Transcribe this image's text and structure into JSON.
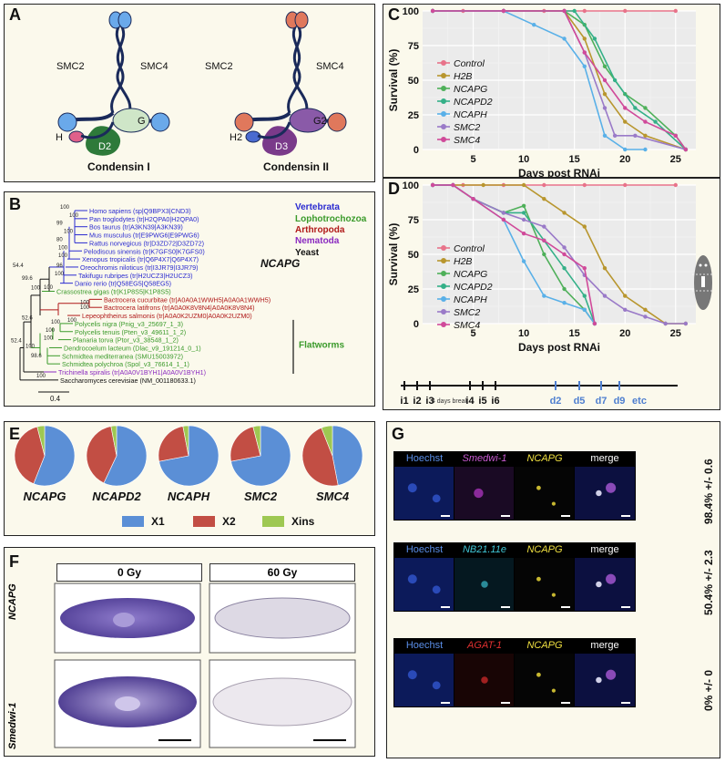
{
  "panel_labels": {
    "a": "A",
    "b": "B",
    "c": "C",
    "d": "D",
    "e": "E",
    "f": "F",
    "g": "G"
  },
  "panel_a": {
    "condensin1": {
      "smc_left": "SMC2",
      "smc_right": "SMC4",
      "h": "H",
      "g": "G",
      "d": "D2",
      "title": "Condensin I",
      "head_color": "#6aa9ea",
      "color_h": "#e0608a",
      "color_g": "#cfe6c8",
      "color_d": "#2e7a3a"
    },
    "condensin2": {
      "smc_left": "SMC2",
      "smc_right": "SMC4",
      "h": "H2",
      "g": "G2",
      "d": "D3",
      "title": "Condensin II",
      "head_color": "#e0785c",
      "color_h": "#4a6bd0",
      "color_g": "#8a5aa8",
      "color_d": "#7a3a8a"
    },
    "coil_color": "#1a2a5a"
  },
  "panel_b": {
    "taxa": [
      {
        "label": "Homo sapiens (sp|Q9BPX3|CND3)",
        "color": "#2a2ad0"
      },
      {
        "label": "Pan troglodytes (tr|H2QPA0|H2QPA0)",
        "color": "#2a2ad0"
      },
      {
        "label": "Bos taurus (tr|A3KN39|A3KN39)",
        "color": "#2a2ad0"
      },
      {
        "label": "Mus musculus (tr|E9PWG6|E9PWG6)",
        "color": "#2a2ad0"
      },
      {
        "label": "Rattus norvegicus (tr|D3ZD72|D3ZD72)",
        "color": "#2a2ad0"
      },
      {
        "label": "Pelodiscus sinensis (tr|K7GFS0|K7GFS0)",
        "color": "#2a2ad0"
      },
      {
        "label": "Xenopus tropicalis (tr|Q6P4X7|Q6P4X7)",
        "color": "#2a2ad0"
      },
      {
        "label": "Oreochromis niloticus (tr|I3JR79|I3JR79)",
        "color": "#2a2ad0"
      },
      {
        "label": "Takifugu rubripes (tr|H2UCZ3|H2UCZ3)",
        "color": "#2a2ad0"
      },
      {
        "label": "Danio rerio (tr|Q58EG5|Q58EG5)",
        "color": "#2a2ad0"
      },
      {
        "label": "Crassostrea gigas (tr|K1P8S5|K1P8S5)",
        "color": "#3a9a2a"
      },
      {
        "label": "Bactrocera cucurbitae (tr|A0A0A1WWH5|A0A0A1WWH5)",
        "color": "#b01818"
      },
      {
        "label": "Bactrocera latifrons (tr|A0A0K8V8N4|A0A0K8V8N4)",
        "color": "#b01818"
      },
      {
        "label": "Lepeophtheirus salmonis (tr|A0A0K2UZM0|A0A0K2UZM0)",
        "color": "#b01818"
      },
      {
        "label": "Polycelis nigra (Pnig_v3_25697_1_3)",
        "color": "#3a9a2a"
      },
      {
        "label": "Polycelis tenuis (Pten_v3_49611_1_2)",
        "color": "#3a9a2a"
      },
      {
        "label": "Planaria torva (Ptor_v3_38548_1_2)",
        "color": "#3a9a2a"
      },
      {
        "label": "Dendrocoelum lacteum (Dlac_v9_191214_0_1)",
        "color": "#3a9a2a"
      },
      {
        "label": "Schmidtea mediterranea (SMU15003972)",
        "color": "#3a9a2a"
      },
      {
        "label": "Schmidtea polychroa (Spol_v3_76614_1_1)",
        "color": "#3a9a2a"
      },
      {
        "label": "Trichinella spiralis (tr|A0A0V1BYH1|A0A0V1BYH1)",
        "color": "#8a2ac0"
      },
      {
        "label": "Saccharomyces cerevisiae (NM_001180633.1)",
        "color": "#111111"
      }
    ],
    "groups": [
      {
        "label": "Vertebrata",
        "color": "#2a2ad0"
      },
      {
        "label": "Lophotrochozoa",
        "color": "#3a9a2a"
      },
      {
        "label": "Arthropoda",
        "color": "#b01818"
      },
      {
        "label": "Nematoda",
        "color": "#8a2ac0"
      },
      {
        "label": "Yeast",
        "color": "#111111"
      }
    ],
    "gene": "NCAPG",
    "flatworms": "Flatworms",
    "supports": [
      "100",
      "100",
      "99",
      "100",
      "80",
      "100",
      "100",
      "96",
      "100",
      "100",
      "99.6",
      "100",
      "54.4",
      "52.6",
      "100",
      "100",
      "100",
      "100",
      "100",
      "100",
      "52.4",
      "100",
      "98.6",
      "100"
    ],
    "scale": "0.4"
  },
  "panel_c": {
    "chart_data": {
      "type": "line",
      "xlabel": "Days post RNAi",
      "ylabel": "Survival (%)",
      "xlim": [
        0,
        27
      ],
      "ylim": [
        0,
        100
      ],
      "xticks": [
        "5",
        "10",
        "15",
        "20",
        "25"
      ],
      "yticks": [
        "0",
        "25",
        "50",
        "75",
        "100"
      ],
      "series": [
        {
          "name": "Control",
          "color": "#e8738a",
          "x": [
            1,
            4,
            8,
            12,
            16,
            20,
            25
          ],
          "values": [
            100,
            100,
            100,
            100,
            100,
            100,
            100
          ]
        },
        {
          "name": "H2B",
          "color": "#b8962e",
          "x": [
            1,
            8,
            14,
            16,
            18,
            20,
            22,
            26
          ],
          "values": [
            100,
            100,
            100,
            80,
            40,
            20,
            10,
            0
          ]
        },
        {
          "name": "NCAPG",
          "color": "#4fb05a",
          "x": [
            1,
            8,
            14,
            16,
            18,
            20,
            22,
            25,
            26
          ],
          "values": [
            100,
            100,
            100,
            90,
            60,
            40,
            30,
            10,
            0
          ]
        },
        {
          "name": "NCAPD2",
          "color": "#34b088",
          "x": [
            1,
            8,
            15,
            17,
            19,
            21,
            23,
            26
          ],
          "values": [
            100,
            100,
            100,
            80,
            50,
            30,
            20,
            0
          ]
        },
        {
          "name": "NCAPH",
          "color": "#59b0e8",
          "x": [
            1,
            8,
            11,
            14,
            16,
            18,
            20,
            22
          ],
          "values": [
            100,
            100,
            90,
            80,
            60,
            10,
            0,
            0
          ]
        },
        {
          "name": "SMC2",
          "color": "#9a7ac8",
          "x": [
            1,
            8,
            14,
            16,
            18,
            19,
            21,
            26
          ],
          "values": [
            100,
            100,
            100,
            70,
            30,
            10,
            10,
            0
          ]
        },
        {
          "name": "SMC4",
          "color": "#d04a9a",
          "x": [
            1,
            8,
            14,
            16,
            18,
            20,
            22,
            25,
            26
          ],
          "values": [
            100,
            100,
            100,
            70,
            50,
            30,
            20,
            10,
            0
          ]
        }
      ]
    }
  },
  "panel_d": {
    "chart_data": {
      "type": "line",
      "xlabel": "Days post RNAi",
      "ylabel": "Survival (%)",
      "xlim": [
        0,
        27
      ],
      "ylim": [
        0,
        100
      ],
      "xticks": [
        "5",
        "10",
        "15",
        "20",
        "25"
      ],
      "yticks": [
        "0",
        "25",
        "50",
        "75",
        "100"
      ],
      "series": [
        {
          "name": "Control",
          "color": "#e8738a",
          "x": [
            1,
            4,
            8,
            12,
            16,
            20,
            25
          ],
          "values": [
            100,
            100,
            100,
            100,
            100,
            100,
            100
          ]
        },
        {
          "name": "H2B",
          "color": "#b8962e",
          "x": [
            1,
            6,
            10,
            12,
            14,
            16,
            18,
            20,
            22,
            24,
            26
          ],
          "values": [
            100,
            100,
            100,
            90,
            80,
            70,
            40,
            20,
            10,
            0,
            0
          ]
        },
        {
          "name": "NCAPG",
          "color": "#4fb05a",
          "x": [
            1,
            3,
            5,
            8,
            10,
            12,
            14,
            16,
            17
          ],
          "values": [
            100,
            100,
            90,
            80,
            85,
            50,
            25,
            10,
            0
          ]
        },
        {
          "name": "NCAPD2",
          "color": "#34b088",
          "x": [
            1,
            3,
            5,
            8,
            10,
            12,
            14,
            16,
            17
          ],
          "values": [
            100,
            100,
            90,
            80,
            80,
            60,
            40,
            20,
            0
          ]
        },
        {
          "name": "NCAPH",
          "color": "#59b0e8",
          "x": [
            1,
            3,
            5,
            8,
            10,
            12,
            14,
            16,
            17
          ],
          "values": [
            100,
            100,
            90,
            75,
            45,
            20,
            15,
            10,
            0
          ]
        },
        {
          "name": "SMC2",
          "color": "#9a7ac8",
          "x": [
            1,
            3,
            5,
            8,
            10,
            12,
            14,
            16,
            18,
            20,
            22,
            24,
            26
          ],
          "values": [
            100,
            100,
            90,
            80,
            75,
            70,
            55,
            35,
            20,
            10,
            5,
            0,
            0
          ]
        },
        {
          "name": "SMC4",
          "color": "#d04a9a",
          "x": [
            1,
            3,
            5,
            8,
            10,
            12,
            14,
            16,
            17
          ],
          "values": [
            100,
            100,
            90,
            75,
            65,
            60,
            50,
            40,
            0
          ]
        }
      ]
    },
    "timeline": {
      "ticks": [
        "i1",
        "i2",
        "i3",
        "i4",
        "i5",
        "i6",
        "d2",
        "d5",
        "d7",
        "d9",
        "etc"
      ],
      "break": "4 days break",
      "blue": "#4f7fd0"
    }
  },
  "panel_e": {
    "chart_data": {
      "type": "pie",
      "categories": [
        "X1",
        "X2",
        "Xins"
      ],
      "colors": [
        "#5b8fd6",
        "#c24e44",
        "#9ec852"
      ],
      "pies": [
        {
          "name": "NCAPG",
          "values": [
            56,
            40,
            4
          ]
        },
        {
          "name": "NCAPD2",
          "values": [
            57,
            40,
            3
          ]
        },
        {
          "name": "NCAPH",
          "values": [
            72,
            25,
            3
          ]
        },
        {
          "name": "SMC2",
          "values": [
            72,
            24,
            4
          ]
        },
        {
          "name": "SMC4",
          "values": [
            47,
            47,
            6
          ]
        }
      ]
    }
  },
  "panel_f": {
    "col1": "0 Gy",
    "col2": "60 Gy",
    "row1": "NCAPG",
    "row2": "Smedwi-1",
    "stain": "#6a56a8"
  },
  "panel_g": {
    "rows": [
      {
        "labels": [
          "Hoechst",
          "Smedwi-1",
          "NCAPG",
          "merge"
        ],
        "colors": [
          "#5a8ee8",
          "#c85ad0",
          "#f0e040",
          "#ffffff"
        ],
        "pct": "98.4% +/- 0.6"
      },
      {
        "labels": [
          "Hoechst",
          "NB21.11e",
          "NCAPG",
          "merge"
        ],
        "colors": [
          "#5a8ee8",
          "#40c8d8",
          "#f0e040",
          "#ffffff"
        ],
        "pct": "50.4% +/- 2.3"
      },
      {
        "labels": [
          "Hoechst",
          "AGAT-1",
          "NCAPG",
          "merge"
        ],
        "colors": [
          "#5a8ee8",
          "#e03030",
          "#f0e040",
          "#ffffff"
        ],
        "pct": "0% +/- 0"
      }
    ],
    "header_row": [
      "Hoechst",
      "Smedwi-1",
      "NCAPG",
      "merge"
    ]
  }
}
